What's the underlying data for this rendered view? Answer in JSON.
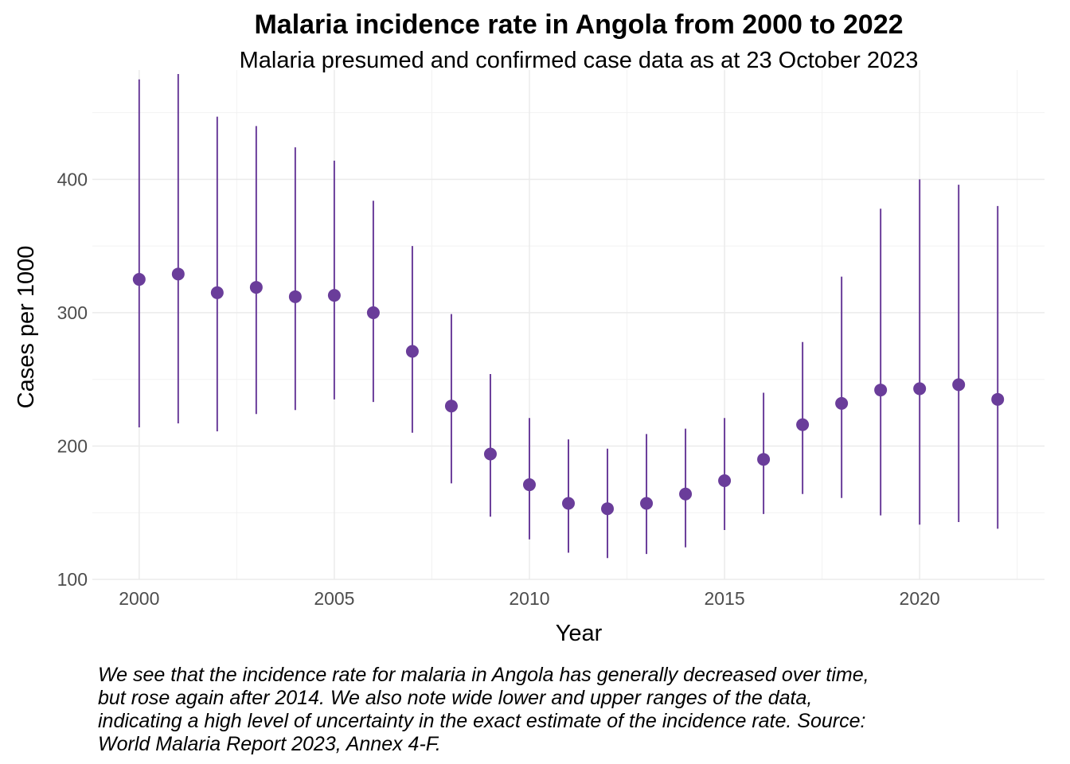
{
  "chart_data": {
    "type": "scatter",
    "title": "Malaria incidence rate in Angola from 2000 to 2022",
    "subtitle": "Malaria presumed and confirmed case data as at 23 October 2023",
    "xlabel": "Year",
    "ylabel": "Cases per 1000",
    "xlim": [
      1998.8,
      2023.2
    ],
    "ylim": [
      100,
      482
    ],
    "xticks": [
      2000,
      2005,
      2010,
      2015,
      2020
    ],
    "yticks": [
      100,
      200,
      300,
      400
    ],
    "grid": true,
    "color": "#6a3d9a",
    "x": [
      2000,
      2001,
      2002,
      2003,
      2004,
      2005,
      2006,
      2007,
      2008,
      2009,
      2010,
      2011,
      2012,
      2013,
      2014,
      2015,
      2016,
      2017,
      2018,
      2019,
      2020,
      2021,
      2022
    ],
    "y": [
      325,
      329,
      315,
      319,
      312,
      313,
      300,
      271,
      230,
      194,
      171,
      157,
      153,
      157,
      164,
      174,
      190,
      216,
      232,
      242,
      243,
      246,
      235
    ],
    "lower": [
      214,
      217,
      211,
      224,
      227,
      235,
      233,
      210,
      172,
      147,
      130,
      120,
      116,
      119,
      124,
      137,
      149,
      164,
      161,
      148,
      141,
      143,
      138
    ],
    "upper": [
      475,
      479,
      447,
      440,
      424,
      414,
      384,
      350,
      299,
      254,
      221,
      205,
      198,
      209,
      213,
      221,
      240,
      278,
      327,
      378,
      400,
      396,
      380
    ]
  },
  "caption": "We see that the incidence rate for malaria in Angola has generally decreased over time, but rose again after 2014. We also note wide lower and upper ranges of the data, indicating a high level of uncertainty in the exact estimate of the incidence rate. Source: World Malaria Report 2023, Annex 4-F."
}
